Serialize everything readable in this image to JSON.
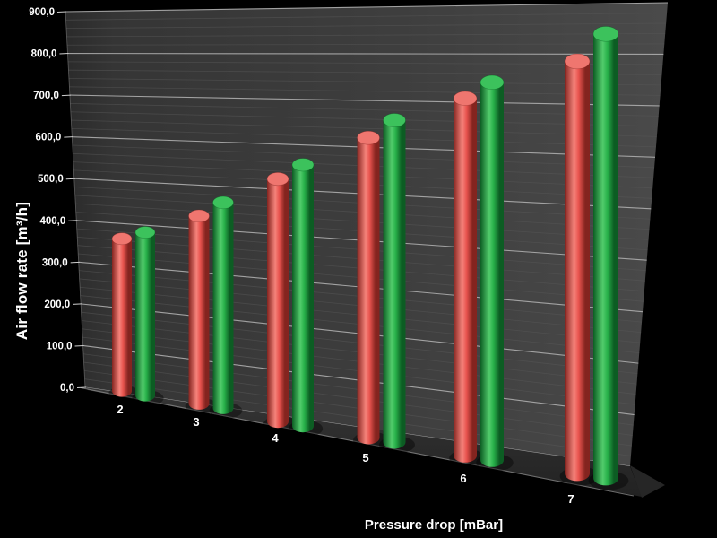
{
  "chart_data": {
    "type": "bar",
    "style": "3d-cylinder",
    "title": "",
    "xlabel": "Pressure drop [mBar]",
    "ylabel": "Air flow rate [m³/h]",
    "categories": [
      "2",
      "3",
      "4",
      "5",
      "6",
      "7"
    ],
    "series": [
      {
        "name": "red-series",
        "color": "#e8534e",
        "color_light": "#f5837b",
        "color_dark": "#84241f",
        "color_top": "#ef766f",
        "values": [
          350,
          420,
          520,
          610,
          695,
          775
        ]
      },
      {
        "name": "green-series",
        "color": "#28b14a",
        "color_light": "#52cc6c",
        "color_dark": "#0c5d23",
        "color_top": "#3cc25c",
        "values": [
          375,
          460,
          560,
          655,
          735,
          835
        ]
      }
    ],
    "ylim": [
      0,
      900
    ],
    "y_tick_step": 100,
    "y_minor_step": 20,
    "y_tick_labels": [
      "0,0",
      "100,0",
      "200,0",
      "300,0",
      "400,0",
      "500,0",
      "600,0",
      "700,0",
      "800,0",
      "900,0"
    ],
    "legend": "none",
    "grid": "major-and-minor",
    "background_color": "#000000",
    "wall_color": "#3e3e3e",
    "floor_color": "#2c2c2c",
    "major_grid_color": "#a8a8a8",
    "minor_grid_color": "#585858",
    "label_color": "#ffffff"
  }
}
